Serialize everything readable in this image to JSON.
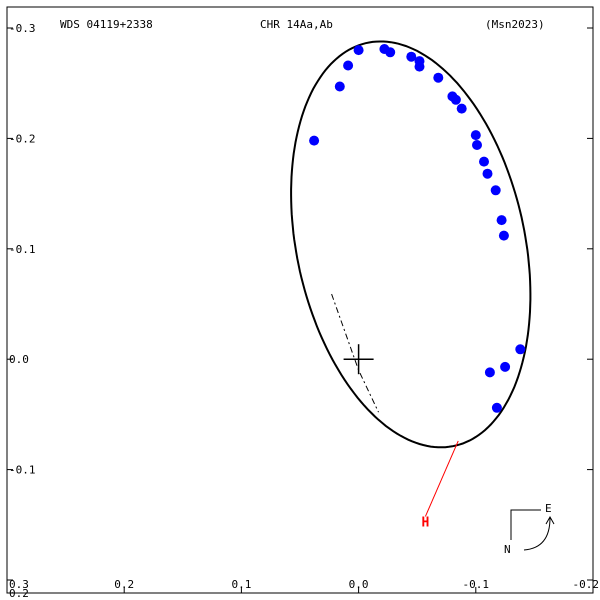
{
  "header": {
    "wds_id": "WDS 04119+2338",
    "discoverer": "CHR  14Aa,Ab",
    "reference": "(Msn2023)"
  },
  "compass": {
    "north_label": "N",
    "east_label": "E"
  },
  "colors": {
    "observations": "#0000ff",
    "orbit": "#000000",
    "marker": "#ff0000",
    "residual": "#0000ff"
  },
  "chart_data": {
    "type": "scatter",
    "title": "",
    "xlabel": "",
    "ylabel": "",
    "xlim": [
      0.3,
      -0.2
    ],
    "ylim": [
      -0.2,
      0.3
    ],
    "x_ticks": [
      {
        "value": 0.3,
        "label": "0.3"
      },
      {
        "value": 0.2,
        "label": "0.2"
      },
      {
        "value": 0.1,
        "label": "0.1"
      },
      {
        "value": 0.0,
        "label": "0.0"
      },
      {
        "value": -0.1,
        "label": "-0.1"
      },
      {
        "value": -0.2,
        "label": "-0.2"
      }
    ],
    "y_ticks": [
      {
        "value": 0.3,
        "label": "-0.3"
      },
      {
        "value": 0.2,
        "label": "-0.2"
      },
      {
        "value": 0.1,
        "label": "-0.1"
      },
      {
        "value": 0.0,
        "label": "0.0"
      },
      {
        "value": -0.1,
        "label": "-0.1"
      },
      {
        "value": -0.2,
        "label": "0.2"
      }
    ],
    "grid": false,
    "orbit_ellipse": {
      "center": [
        -0.0445,
        0.104
      ],
      "semi_x": 0.0975,
      "semi_y": 0.1863,
      "rotation_deg": -11
    },
    "nodes_line": [
      [
        0.023,
        0.059
      ],
      [
        0.0,
        -0.01
      ],
      [
        -0.017,
        -0.048
      ]
    ],
    "primary": [
      0.0,
      0.0
    ],
    "observations": [
      {
        "x": 0.0,
        "y": 0.28
      },
      {
        "x": 0.009,
        "y": 0.266
      },
      {
        "x": 0.016,
        "y": 0.247
      },
      {
        "x": 0.038,
        "y": 0.198
      },
      {
        "x": -0.022,
        "y": 0.281
      },
      {
        "x": -0.027,
        "y": 0.278
      },
      {
        "x": -0.045,
        "y": 0.274
      },
      {
        "x": -0.052,
        "y": 0.27
      },
      {
        "x": -0.052,
        "y": 0.265
      },
      {
        "x": -0.068,
        "y": 0.255
      },
      {
        "x": -0.08,
        "y": 0.238
      },
      {
        "x": -0.083,
        "y": 0.235
      },
      {
        "x": -0.088,
        "y": 0.227
      },
      {
        "x": -0.1,
        "y": 0.203
      },
      {
        "x": -0.101,
        "y": 0.194
      },
      {
        "x": -0.107,
        "y": 0.179
      },
      {
        "x": -0.11,
        "y": 0.168
      },
      {
        "x": -0.117,
        "y": 0.153
      },
      {
        "x": -0.122,
        "y": 0.126
      },
      {
        "x": -0.124,
        "y": 0.112
      },
      {
        "x": -0.138,
        "y": 0.009
      },
      {
        "x": -0.125,
        "y": -0.007
      },
      {
        "x": -0.112,
        "y": -0.012
      },
      {
        "x": -0.118,
        "y": -0.044
      }
    ],
    "periastron": {
      "label": "H",
      "x": -0.057,
      "y": -0.147,
      "orbit_x": -0.085,
      "orbit_y": -0.074
    }
  }
}
